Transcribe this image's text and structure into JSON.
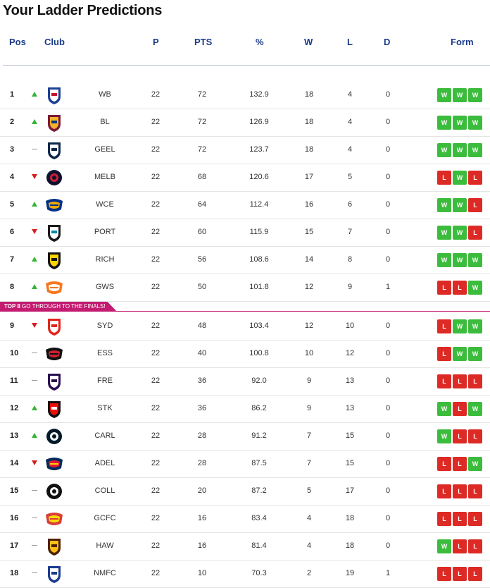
{
  "title": "Your Ladder Predictions",
  "columns": {
    "pos": "Pos",
    "club": "Club",
    "p": "P",
    "pts": "PTS",
    "pct": "%",
    "w": "W",
    "l": "L",
    "d": "D",
    "form": "Form"
  },
  "banner": {
    "bold": "TOP 8",
    "rest": " GO THROUGH TO THE FINALS!"
  },
  "colors": {
    "win": "#3cbc3c",
    "loss": "#dd2a25",
    "up": "#36b436",
    "down": "#d42020",
    "header": "#1a3a8a",
    "banner": "#c31b70"
  },
  "rows": [
    {
      "pos": "1",
      "move": "up",
      "logo": "bulldogs-logo-icon",
      "club": "WB",
      "p": "22",
      "pts": "72",
      "pct": "132.9",
      "w": "18",
      "l": "4",
      "d": "0",
      "form": [
        "W",
        "W",
        "W"
      ]
    },
    {
      "pos": "2",
      "move": "up",
      "logo": "lions-logo-icon",
      "club": "BL",
      "p": "22",
      "pts": "72",
      "pct": "126.9",
      "w": "18",
      "l": "4",
      "d": "0",
      "form": [
        "W",
        "W",
        "W"
      ]
    },
    {
      "pos": "3",
      "move": "same",
      "logo": "cats-logo-icon",
      "club": "GEEL",
      "p": "22",
      "pts": "72",
      "pct": "123.7",
      "w": "18",
      "l": "4",
      "d": "0",
      "form": [
        "W",
        "W",
        "W"
      ]
    },
    {
      "pos": "4",
      "move": "down",
      "logo": "demons-logo-icon",
      "club": "MELB",
      "p": "22",
      "pts": "68",
      "pct": "120.6",
      "w": "17",
      "l": "5",
      "d": "0",
      "form": [
        "L",
        "W",
        "L"
      ]
    },
    {
      "pos": "5",
      "move": "up",
      "logo": "eagles-logo-icon",
      "club": "WCE",
      "p": "22",
      "pts": "64",
      "pct": "112.4",
      "w": "16",
      "l": "6",
      "d": "0",
      "form": [
        "W",
        "W",
        "L"
      ]
    },
    {
      "pos": "6",
      "move": "down",
      "logo": "power-logo-icon",
      "club": "PORT",
      "p": "22",
      "pts": "60",
      "pct": "115.9",
      "w": "15",
      "l": "7",
      "d": "0",
      "form": [
        "W",
        "W",
        "L"
      ]
    },
    {
      "pos": "7",
      "move": "up",
      "logo": "tigers-logo-icon",
      "club": "RICH",
      "p": "22",
      "pts": "56",
      "pct": "108.6",
      "w": "14",
      "l": "8",
      "d": "0",
      "form": [
        "W",
        "W",
        "W"
      ]
    },
    {
      "pos": "8",
      "move": "up",
      "logo": "giants-logo-icon",
      "club": "GWS",
      "p": "22",
      "pts": "50",
      "pct": "101.8",
      "w": "12",
      "l": "9",
      "d": "1",
      "form": [
        "L",
        "L",
        "W"
      ]
    },
    {
      "pos": "9",
      "move": "down",
      "logo": "swans-logo-icon",
      "club": "SYD",
      "p": "22",
      "pts": "48",
      "pct": "103.4",
      "w": "12",
      "l": "10",
      "d": "0",
      "form": [
        "L",
        "W",
        "W"
      ]
    },
    {
      "pos": "10",
      "move": "same",
      "logo": "bombers-logo-icon",
      "club": "ESS",
      "p": "22",
      "pts": "40",
      "pct": "100.8",
      "w": "10",
      "l": "12",
      "d": "0",
      "form": [
        "L",
        "W",
        "W"
      ]
    },
    {
      "pos": "11",
      "move": "same",
      "logo": "dockers-logo-icon",
      "club": "FRE",
      "p": "22",
      "pts": "36",
      "pct": "92.0",
      "w": "9",
      "l": "13",
      "d": "0",
      "form": [
        "L",
        "L",
        "L"
      ]
    },
    {
      "pos": "12",
      "move": "up",
      "logo": "saints-logo-icon",
      "club": "STK",
      "p": "22",
      "pts": "36",
      "pct": "86.2",
      "w": "9",
      "l": "13",
      "d": "0",
      "form": [
        "W",
        "L",
        "W"
      ]
    },
    {
      "pos": "13",
      "move": "up",
      "logo": "blues-logo-icon",
      "club": "CARL",
      "p": "22",
      "pts": "28",
      "pct": "91.2",
      "w": "7",
      "l": "15",
      "d": "0",
      "form": [
        "W",
        "L",
        "L"
      ]
    },
    {
      "pos": "14",
      "move": "down",
      "logo": "crows-logo-icon",
      "club": "ADEL",
      "p": "22",
      "pts": "28",
      "pct": "87.5",
      "w": "7",
      "l": "15",
      "d": "0",
      "form": [
        "L",
        "L",
        "W"
      ]
    },
    {
      "pos": "15",
      "move": "same",
      "logo": "magpies-logo-icon",
      "club": "COLL",
      "p": "22",
      "pts": "20",
      "pct": "87.2",
      "w": "5",
      "l": "17",
      "d": "0",
      "form": [
        "L",
        "L",
        "L"
      ]
    },
    {
      "pos": "16",
      "move": "same",
      "logo": "suns-logo-icon",
      "club": "GCFC",
      "p": "22",
      "pts": "16",
      "pct": "83.4",
      "w": "4",
      "l": "18",
      "d": "0",
      "form": [
        "L",
        "L",
        "L"
      ]
    },
    {
      "pos": "17",
      "move": "same",
      "logo": "hawks-logo-icon",
      "club": "HAW",
      "p": "22",
      "pts": "16",
      "pct": "81.4",
      "w": "4",
      "l": "18",
      "d": "0",
      "form": [
        "W",
        "L",
        "L"
      ]
    },
    {
      "pos": "18",
      "move": "same",
      "logo": "kangaroos-logo-icon",
      "club": "NMFC",
      "p": "22",
      "pts": "10",
      "pct": "70.3",
      "w": "2",
      "l": "19",
      "d": "1",
      "form": [
        "L",
        "L",
        "L"
      ]
    }
  ]
}
